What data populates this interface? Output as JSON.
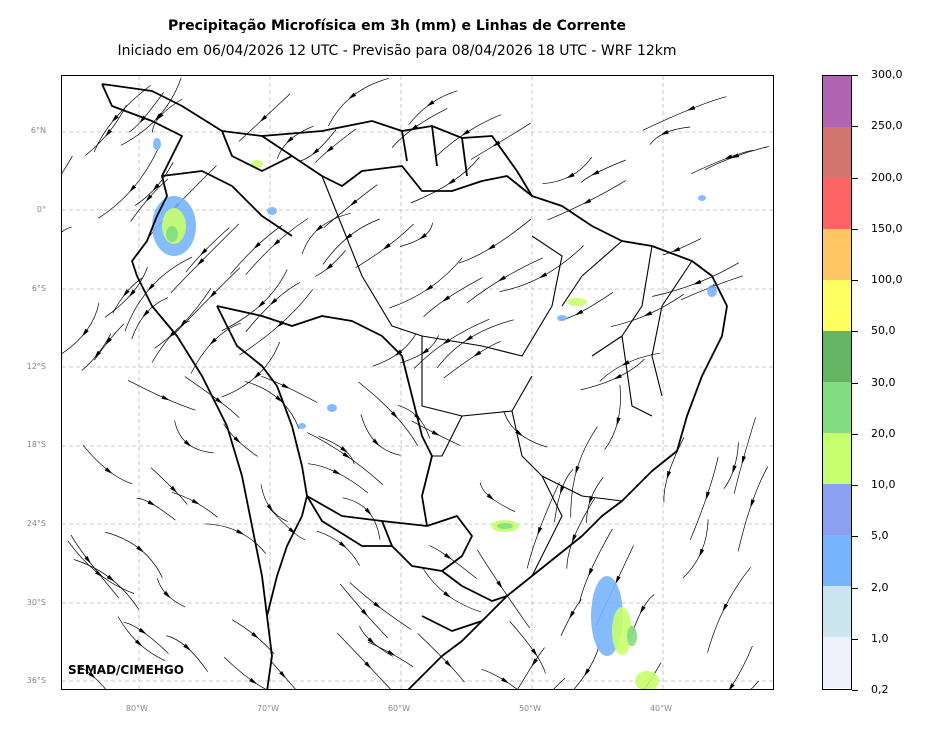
{
  "title": "Precipitação Microfísica em 3h (mm) e Linhas de Corrente",
  "subtitle": "Iniciado em 06/04/2026 12 UTC - Previsão para 08/04/2026 18 UTC - WRF 12km",
  "credit": "SEMAD/CIMEHGO",
  "map": {
    "lat_labels": [
      "6°N",
      "0°",
      "6°S",
      "12°S",
      "18°S",
      "24°S",
      "30°S",
      "36°S"
    ],
    "lon_labels": [
      "80°W",
      "70°W",
      "60°W",
      "50°W",
      "40°W"
    ],
    "grid": true
  },
  "colorbar": {
    "labels": [
      "300,0",
      "250,0",
      "200,0",
      "150,0",
      "100,0",
      "50,0",
      "30,0",
      "20,0",
      "10,0",
      "5,0",
      "2,0",
      "1,0",
      "0,2"
    ],
    "colors": [
      "#b264b4",
      "#d4756f",
      "#ff6464",
      "#ffc864",
      "#ffff64",
      "#64b464",
      "#82dc82",
      "#c8ff6e",
      "#8ca0f0",
      "#78b4ff",
      "#cce6f0",
      "#f0f0fa"
    ]
  }
}
